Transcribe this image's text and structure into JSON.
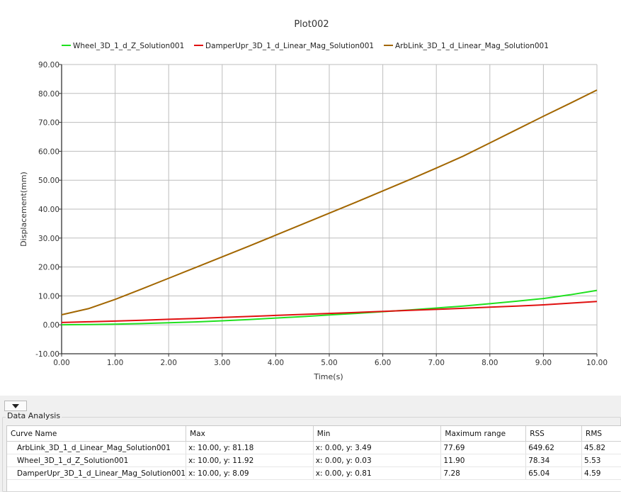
{
  "chart_data": {
    "type": "line",
    "title": "Plot002",
    "xlabel": "Time(s)",
    "ylabel": "Displacement(mm)",
    "xlim": [
      0,
      10
    ],
    "ylim": [
      -10,
      90
    ],
    "grid": true,
    "legend_placement": "top",
    "x_ticks": [
      "0.00",
      "1.00",
      "2.00",
      "3.00",
      "4.00",
      "5.00",
      "6.00",
      "7.00",
      "8.00",
      "9.00",
      "10.00"
    ],
    "y_ticks": [
      "90.00",
      "80.00",
      "70.00",
      "60.00",
      "50.00",
      "40.00",
      "30.00",
      "20.00",
      "10.00",
      "0.00",
      "-10.00"
    ],
    "x": [
      0,
      0.5,
      1,
      1.5,
      2,
      2.5,
      3,
      3.5,
      4,
      4.5,
      5,
      5.5,
      6,
      6.5,
      7,
      7.5,
      8,
      8.5,
      9,
      9.5,
      10
    ],
    "series": [
      {
        "name": "Wheel_3D_1_d_Z_Solution001",
        "color": "#1fe01f",
        "values": [
          0.03,
          0.1,
          0.25,
          0.45,
          0.7,
          1.0,
          1.4,
          1.85,
          2.35,
          2.85,
          3.4,
          3.95,
          4.55,
          5.15,
          5.8,
          6.5,
          7.3,
          8.15,
          9.1,
          10.4,
          11.92
        ]
      },
      {
        "name": "DamperUpr_3D_1_d_Linear_Mag_Solution001",
        "color": "#e01010",
        "values": [
          0.81,
          1.05,
          1.3,
          1.6,
          1.9,
          2.2,
          2.55,
          2.9,
          3.25,
          3.6,
          3.95,
          4.3,
          4.65,
          5.0,
          5.35,
          5.7,
          6.1,
          6.5,
          6.9,
          7.5,
          8.09
        ]
      },
      {
        "name": "ArbLink_3D_1_d_Linear_Mag_Solution001",
        "color": "#a26600",
        "values": [
          3.49,
          5.6,
          8.8,
          12.4,
          16.1,
          19.8,
          23.5,
          27.2,
          31.0,
          34.8,
          38.6,
          42.4,
          46.3,
          50.2,
          54.2,
          58.3,
          62.9,
          67.5,
          72.1,
          76.6,
          81.18
        ]
      }
    ]
  },
  "panel": {
    "title": "Data Analysis",
    "columns": [
      "Curve Name",
      "Max",
      "Min",
      "Maximum range",
      "RSS",
      "RMS"
    ],
    "rows": [
      [
        "ArbLink_3D_1_d_Linear_Mag_Solution001",
        "x: 10.00, y: 81.18",
        "x: 0.00, y: 3.49",
        "77.69",
        "649.62",
        "45.82"
      ],
      [
        "Wheel_3D_1_d_Z_Solution001",
        "x: 10.00, y: 11.92",
        "x: 0.00, y: 0.03",
        "11.90",
        "78.34",
        "5.53"
      ],
      [
        "DamperUpr_3D_1_d_Linear_Mag_Solution001",
        "x: 10.00, y: 8.09",
        "x: 0.00, y: 0.81",
        "7.28",
        "65.04",
        "4.59"
      ]
    ]
  }
}
